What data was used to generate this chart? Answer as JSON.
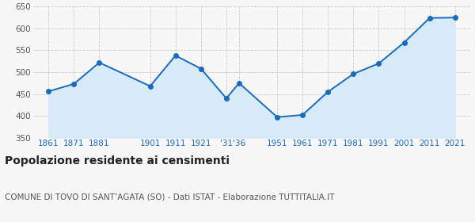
{
  "years": [
    1861,
    1871,
    1881,
    1901,
    1911,
    1921,
    1931,
    1936,
    1951,
    1961,
    1971,
    1981,
    1991,
    2001,
    2011,
    2021
  ],
  "population": [
    456,
    473,
    522,
    468,
    538,
    508,
    440,
    475,
    397,
    402,
    455,
    496,
    520,
    568,
    624,
    625
  ],
  "line_color": "#1a6bbf",
  "fill_color": "#d6eaf8",
  "marker": "o",
  "marker_size": 4,
  "ylim": [
    350,
    650
  ],
  "yticks": [
    350,
    400,
    450,
    500,
    550,
    600,
    650
  ],
  "x_tick_positions": [
    1861,
    1871,
    1881,
    1901,
    1911,
    1921,
    1931,
    1936,
    1951,
    1961,
    1971,
    1981,
    1991,
    2001,
    2011,
    2021
  ],
  "x_tick_labels": [
    "1861",
    "1871",
    "1881",
    "1901",
    "1911",
    "1921",
    "'31",
    "'36",
    "1951",
    "1961",
    "1971",
    "1981",
    "1991",
    "2001",
    "2011",
    "2021"
  ],
  "title": "Popolazione residente ai censimenti",
  "subtitle": "COMUNE DI TOVO DI SANT’AGATA (SO) - Dati ISTAT - Elaborazione TUTTITALIA.IT",
  "title_fontsize": 10,
  "subtitle_fontsize": 7.5,
  "tick_label_color": "#1a6bbf",
  "ytick_label_color": "#555555",
  "bg_color": "#f7f7f7",
  "grid_color": "#cccccc",
  "xlim_left": 1855,
  "xlim_right": 2027
}
